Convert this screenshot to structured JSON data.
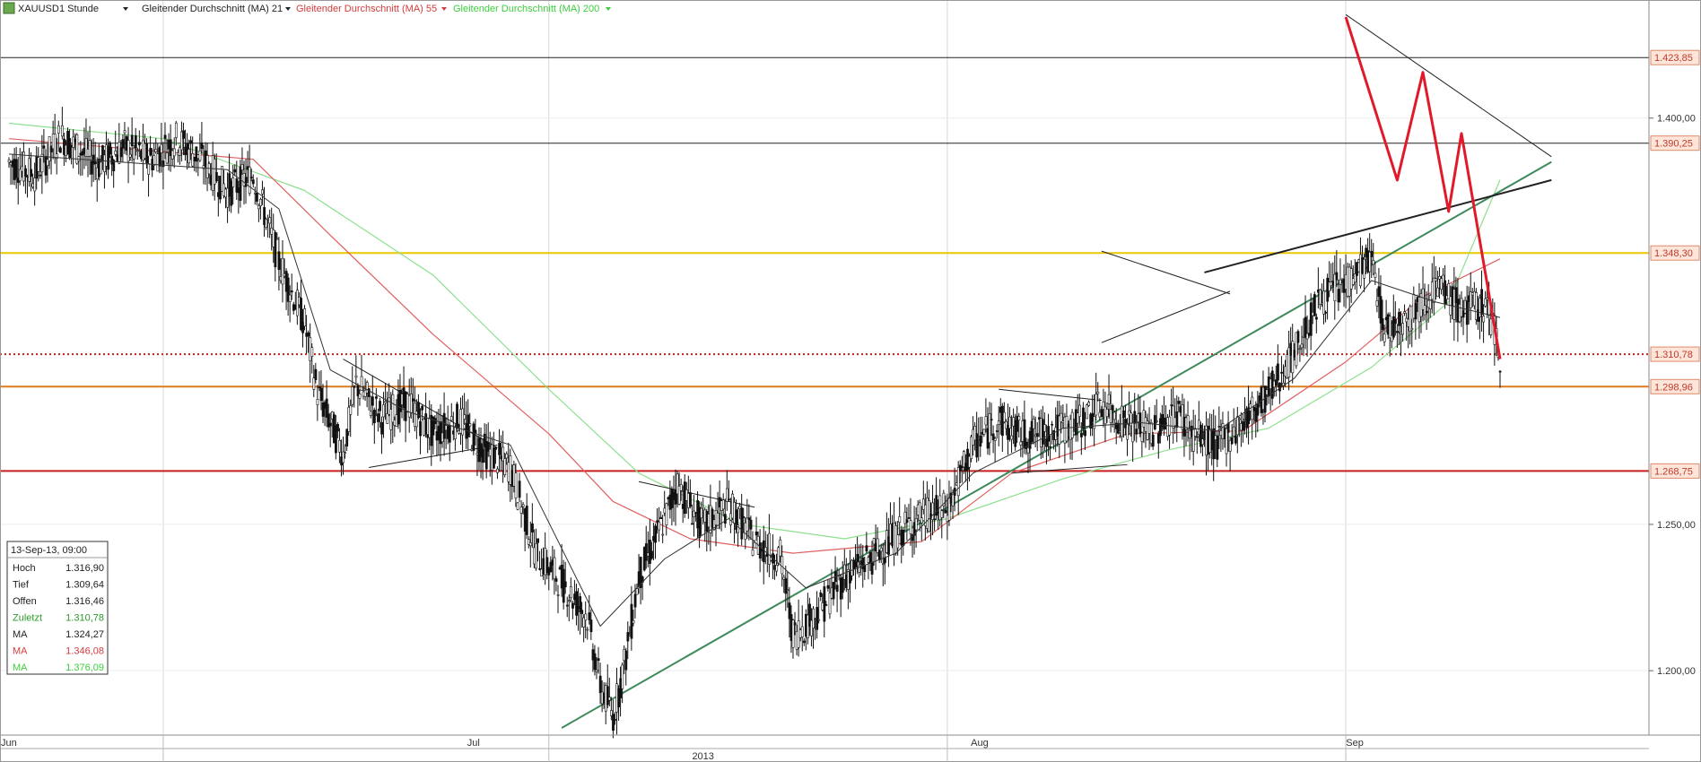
{
  "header": {
    "symbol": "XAUUSD",
    "timeframe": "1 Stunde",
    "studies": [
      {
        "label": "Gleitender Durchschnitt (MA) 21",
        "color": "#222222"
      },
      {
        "label": "Gleitender Durchschnitt (MA) 55",
        "color": "#d43c3c"
      },
      {
        "label": "Gleitender Durchschnitt (MA) 200",
        "color": "#3ccf3c"
      }
    ]
  },
  "info_box": {
    "date": "13-Sep-13, 09:00",
    "rows": [
      {
        "label": "Hoch",
        "value": "1.316,90",
        "color": "#222222"
      },
      {
        "label": "Tief",
        "value": "1.309,64",
        "color": "#222222"
      },
      {
        "label": "Offen",
        "value": "1.316,46",
        "color": "#222222"
      },
      {
        "label": "Zuletzt",
        "value": "1.310,78",
        "color": "#2a9a2a"
      },
      {
        "label": "MA",
        "value": "1.324,27",
        "color": "#222222"
      },
      {
        "label": "MA",
        "value": "1.346,08",
        "color": "#d43c3c"
      },
      {
        "label": "MA",
        "value": "1.376,09",
        "color": "#3ccf3c"
      }
    ]
  },
  "colors": {
    "price": "#111111",
    "ma21": "#333333",
    "ma55": "#e06060",
    "ma200": "#8ee08e",
    "trend_up": "#3e8a5c",
    "pattern": "#e01a2a",
    "level_yellow": "#e8c800",
    "level_orange": "#e07a1a",
    "level_red": "#c81e1e",
    "level_black": "#222222",
    "level_dotted": "#c81e1e",
    "grid": "#d8d8d8",
    "label_bg": "#fde6d9"
  },
  "chart_data": {
    "type": "candlestick",
    "instrument": "XAUUSD",
    "interval": "1 Stunde",
    "y_axis": {
      "scale": "log",
      "ylim": [
        1181,
        1444
      ],
      "ticks": [
        {
          "value": 1200,
          "label": "1.200,00"
        },
        {
          "value": 1250,
          "label": "1.250,00"
        },
        {
          "value": 1400,
          "label": "1.400,00"
        }
      ]
    },
    "x_axis": {
      "range": [
        "2013-05-20",
        "2013-09-13"
      ],
      "month_ticks": [
        {
          "date": "2013-06-01",
          "label": "Jun"
        },
        {
          "date": "2013-07-01",
          "label": "Jul"
        },
        {
          "date": "2013-08-01",
          "label": "Aug"
        },
        {
          "date": "2013-09-01",
          "label": "Sep"
        }
      ],
      "year_label": {
        "date": "2013-07-13",
        "label": "2013"
      },
      "grid_dates": [
        "2013-06-01",
        "2013-07-01",
        "2013-08-01",
        "2013-09-01"
      ]
    },
    "horizontal_levels": [
      {
        "value": 1423.85,
        "label": "1.423,85",
        "style": "solid",
        "color_key": "level_black"
      },
      {
        "value": 1390.25,
        "label": "1.390,25",
        "style": "solid",
        "color_key": "level_black"
      },
      {
        "value": 1348.3,
        "label": "1.348,30",
        "style": "solid",
        "color_key": "level_yellow"
      },
      {
        "value": 1310.78,
        "label": "1.310,78",
        "style": "dotted",
        "color_key": "level_dotted",
        "current": true
      },
      {
        "value": 1298.96,
        "label": "1.298,96",
        "style": "solid",
        "color_key": "level_orange"
      },
      {
        "value": 1268.75,
        "label": "1.268,75",
        "style": "solid",
        "color_key": "level_red"
      }
    ],
    "price_path": [
      [
        "2013-05-20",
        1383
      ],
      [
        "2013-05-22",
        1378
      ],
      [
        "2013-05-24",
        1393
      ],
      [
        "2013-05-27",
        1382
      ],
      [
        "2013-05-29",
        1389
      ],
      [
        "2013-05-31",
        1384
      ],
      [
        "2013-06-02",
        1392
      ],
      [
        "2013-06-04",
        1384
      ],
      [
        "2013-06-06",
        1372
      ],
      [
        "2013-06-08",
        1378
      ],
      [
        "2013-06-10",
        1345
      ],
      [
        "2013-06-12",
        1322
      ],
      [
        "2013-06-13",
        1297
      ],
      [
        "2013-06-15",
        1275
      ],
      [
        "2013-06-16",
        1300
      ],
      [
        "2013-06-18",
        1288
      ],
      [
        "2013-06-20",
        1293
      ],
      [
        "2013-06-22",
        1282
      ],
      [
        "2013-06-24",
        1287
      ],
      [
        "2013-06-26",
        1276
      ],
      [
        "2013-06-28",
        1270
      ],
      [
        "2013-06-30",
        1240
      ],
      [
        "2013-07-02",
        1230
      ],
      [
        "2013-07-04",
        1218
      ],
      [
        "2013-07-05",
        1195
      ],
      [
        "2013-07-06",
        1185
      ],
      [
        "2013-07-07",
        1205
      ],
      [
        "2013-07-08",
        1232
      ],
      [
        "2013-07-10",
        1252
      ],
      [
        "2013-07-11",
        1264
      ],
      [
        "2013-07-13",
        1249
      ],
      [
        "2013-07-15",
        1257
      ],
      [
        "2013-07-17",
        1244
      ],
      [
        "2013-07-19",
        1239
      ],
      [
        "2013-07-20",
        1212
      ],
      [
        "2013-07-22",
        1220
      ],
      [
        "2013-07-24",
        1232
      ],
      [
        "2013-07-26",
        1238
      ],
      [
        "2013-07-28",
        1246
      ],
      [
        "2013-07-30",
        1253
      ],
      [
        "2013-08-01",
        1255
      ],
      [
        "2013-08-03",
        1278
      ],
      [
        "2013-08-05",
        1287
      ],
      [
        "2013-08-07",
        1281
      ],
      [
        "2013-08-09",
        1283
      ],
      [
        "2013-08-11",
        1285
      ],
      [
        "2013-08-13",
        1292
      ],
      [
        "2013-08-15",
        1286
      ],
      [
        "2013-08-17",
        1283
      ],
      [
        "2013-08-19",
        1290
      ],
      [
        "2013-08-20",
        1282
      ],
      [
        "2013-08-22",
        1278
      ],
      [
        "2013-08-24",
        1286
      ],
      [
        "2013-08-26",
        1297
      ],
      [
        "2013-08-28",
        1311
      ],
      [
        "2013-08-30",
        1331
      ],
      [
        "2013-09-01",
        1337
      ],
      [
        "2013-09-02",
        1342
      ],
      [
        "2013-09-03",
        1346
      ],
      [
        "2013-09-04",
        1320
      ],
      [
        "2013-09-06",
        1325
      ],
      [
        "2013-09-08",
        1336
      ],
      [
        "2013-09-10",
        1327
      ],
      [
        "2013-09-12",
        1329
      ],
      [
        "2013-09-13",
        1310.78
      ]
    ],
    "ma21_path": [
      [
        "2013-05-20",
        1386
      ],
      [
        "2013-06-06",
        1380
      ],
      [
        "2013-06-10",
        1365
      ],
      [
        "2013-06-14",
        1305
      ],
      [
        "2013-06-20",
        1290
      ],
      [
        "2013-06-28",
        1278
      ],
      [
        "2013-07-05",
        1215
      ],
      [
        "2013-07-10",
        1238
      ],
      [
        "2013-07-15",
        1252
      ],
      [
        "2013-07-21",
        1228
      ],
      [
        "2013-07-28",
        1240
      ],
      [
        "2013-08-03",
        1268
      ],
      [
        "2013-08-10",
        1284
      ],
      [
        "2013-08-16",
        1286
      ],
      [
        "2013-08-22",
        1283
      ],
      [
        "2013-08-28",
        1302
      ],
      [
        "2013-09-03",
        1338
      ],
      [
        "2013-09-08",
        1330
      ],
      [
        "2013-09-13",
        1324.27
      ]
    ],
    "ma55_path": [
      [
        "2013-05-20",
        1392
      ],
      [
        "2013-06-08",
        1384
      ],
      [
        "2013-06-14",
        1355
      ],
      [
        "2013-06-22",
        1318
      ],
      [
        "2013-07-01",
        1282
      ],
      [
        "2013-07-06",
        1258
      ],
      [
        "2013-07-12",
        1245
      ],
      [
        "2013-07-20",
        1240
      ],
      [
        "2013-07-30",
        1244
      ],
      [
        "2013-08-06",
        1268
      ],
      [
        "2013-08-15",
        1282
      ],
      [
        "2013-08-24",
        1283
      ],
      [
        "2013-09-01",
        1308
      ],
      [
        "2013-09-07",
        1332
      ],
      [
        "2013-09-13",
        1346.08
      ]
    ],
    "ma200_path": [
      [
        "2013-05-20",
        1398
      ],
      [
        "2013-06-01",
        1392
      ],
      [
        "2013-06-12",
        1372
      ],
      [
        "2013-06-22",
        1340
      ],
      [
        "2013-07-01",
        1298
      ],
      [
        "2013-07-08",
        1268
      ],
      [
        "2013-07-16",
        1250
      ],
      [
        "2013-07-24",
        1245
      ],
      [
        "2013-08-01",
        1252
      ],
      [
        "2013-08-10",
        1266
      ],
      [
        "2013-08-18",
        1276
      ],
      [
        "2013-08-26",
        1284
      ],
      [
        "2013-09-03",
        1306
      ],
      [
        "2013-09-09",
        1330
      ],
      [
        "2013-09-13",
        1376.09
      ]
    ],
    "trendlines": [
      {
        "id": "long-uptrend",
        "color_key": "trend_up",
        "width": 2,
        "points": [
          [
            "2013-07-02",
            1181
          ],
          [
            "2013-09-17",
            1383
          ]
        ]
      },
      {
        "id": "neckline",
        "color_key": "level_black",
        "width": 2,
        "points": [
          [
            "2013-08-21",
            1341
          ],
          [
            "2013-09-17",
            1376
          ]
        ]
      },
      {
        "id": "top-resistance",
        "color_key": "level_black",
        "width": 1,
        "points": [
          [
            "2013-09-01",
            1441
          ],
          [
            "2013-09-17",
            1385
          ]
        ]
      },
      {
        "id": "june-wedge-top",
        "color_key": "level_black",
        "width": 1,
        "points": [
          [
            "2013-06-15",
            1309
          ],
          [
            "2013-06-27",
            1277
          ]
        ]
      },
      {
        "id": "june-wedge-bottom",
        "color_key": "level_black",
        "width": 1,
        "points": [
          [
            "2013-06-17",
            1270
          ],
          [
            "2013-06-27",
            1278
          ]
        ]
      },
      {
        "id": "july-wedge-top",
        "color_key": "level_black",
        "width": 1,
        "points": [
          [
            "2013-07-08",
            1265
          ],
          [
            "2013-07-17",
            1256
          ]
        ]
      },
      {
        "id": "aug-wedge-top",
        "color_key": "level_black",
        "width": 1,
        "points": [
          [
            "2013-08-05",
            1298
          ],
          [
            "2013-08-13",
            1294
          ]
        ]
      },
      {
        "id": "aug-wedge-bottom",
        "color_key": "level_black",
        "width": 1,
        "points": [
          [
            "2013-08-06",
            1268
          ],
          [
            "2013-08-15",
            1271
          ]
        ]
      },
      {
        "id": "aug2-wedge-top",
        "color_key": "level_black",
        "width": 1,
        "points": [
          [
            "2013-08-13",
            1349
          ],
          [
            "2013-08-23",
            1333
          ]
        ]
      },
      {
        "id": "aug2-wedge-bottom",
        "color_key": "level_black",
        "width": 1,
        "points": [
          [
            "2013-08-13",
            1315
          ],
          [
            "2013-08-23",
            1334
          ]
        ]
      }
    ],
    "pattern_path": {
      "color_key": "pattern",
      "width": 3,
      "points": [
        [
          "2013-09-01",
          1440
        ],
        [
          "2013-09-05",
          1376
        ],
        [
          "2013-09-07",
          1418
        ],
        [
          "2013-09-09",
          1364
        ],
        [
          "2013-09-10",
          1394
        ],
        [
          "2013-09-13",
          1309
        ]
      ]
    }
  }
}
